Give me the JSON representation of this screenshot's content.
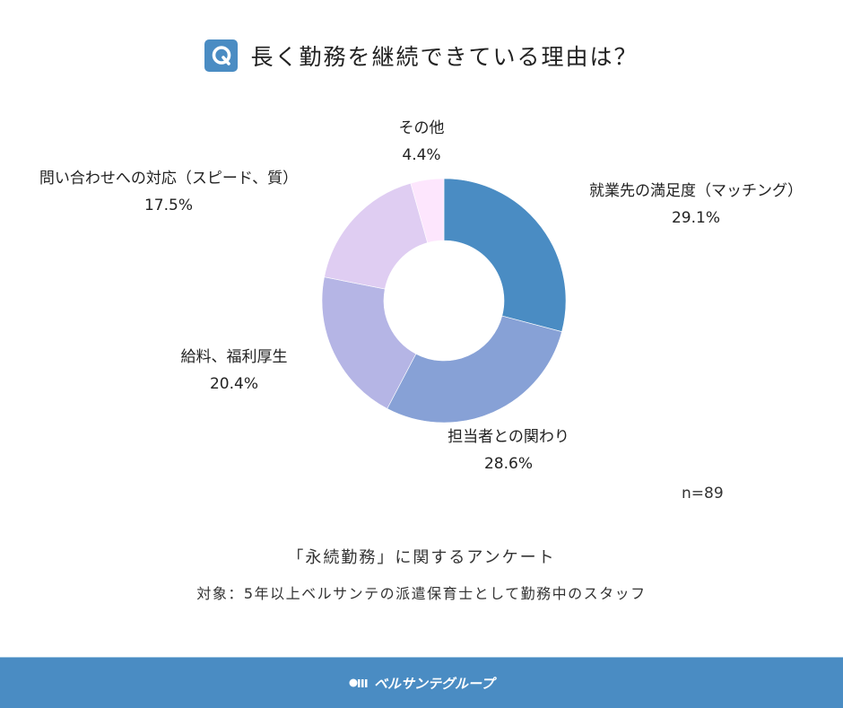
{
  "header": {
    "icon": "q-icon",
    "icon_letter": "Q",
    "title": "長く勤務を継続できている理由は？"
  },
  "chart_data": {
    "type": "pie",
    "subtype": "donut",
    "title": "長く勤務を継続できている理由は？",
    "categories": [
      "就業先の満足度（マッチング）",
      "担当者との関わり",
      "給料、福利厚生",
      "問い合わせへの対応（スピード、質）",
      "その他"
    ],
    "values": [
      29.1,
      28.6,
      20.4,
      17.5,
      4.4
    ],
    "value_labels": [
      "29.1%",
      "28.6%",
      "20.4%",
      "17.5%",
      "4.4%"
    ],
    "colors": [
      "#4a8cc3",
      "#87a1d6",
      "#b5b5e5",
      "#dfcdf2",
      "#fde6fd"
    ],
    "start_angle": "12 o'clock",
    "direction": "clockwise",
    "sample_size": "n=89",
    "legend": "none (direct labels)"
  },
  "n_label": "n=89",
  "survey": {
    "title": "「永続勤務」に関するアンケート",
    "target": "対象：5年以上ベルサンテの派遣保育士として勤務中のスタッフ"
  },
  "footer": {
    "logo_text": "ベルサンテグループ",
    "bg_color": "#4a8cc3"
  }
}
